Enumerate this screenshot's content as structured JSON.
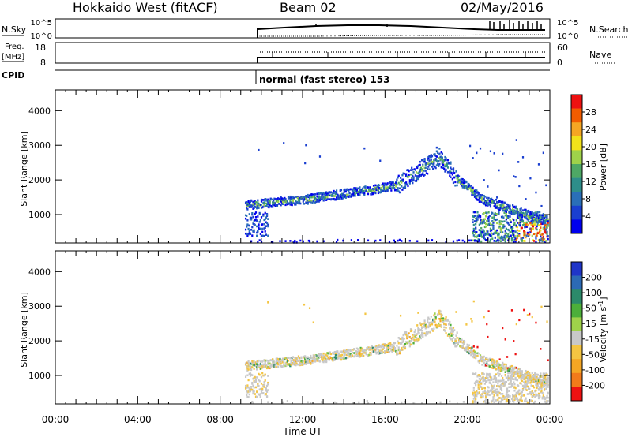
{
  "header": {
    "title": "Hokkaido West (fitACF)",
    "beam": "Beam 02",
    "date": "02/May/2016"
  },
  "nsky_panel": {
    "left_label": "N.Sky",
    "right_label": "N.Search",
    "left_ticks": [
      "10^5",
      "10^0"
    ],
    "right_ticks": [
      "10^5",
      "10^0"
    ]
  },
  "freq_panel": {
    "left_label_1": "Freq.",
    "left_label_2": "[MHz]",
    "left_ticks": [
      "18",
      "8"
    ],
    "right_label": "Nave",
    "right_ticks": [
      "60",
      "0"
    ]
  },
  "cpid_panel": {
    "label": "CPID",
    "mode_text": "normal (fast stereo) 153"
  },
  "chart_data": [
    {
      "type": "heatmap",
      "name": "power",
      "ylabel": "Slant Range [km]",
      "ylim": [
        180,
        4600
      ],
      "yticks": [
        1000,
        2000,
        3000,
        4000
      ],
      "xlim": [
        0,
        24
      ],
      "colorbar": {
        "label": "Power [dB]",
        "ticks": [
          "28",
          "24",
          "20",
          "16",
          "12",
          "8",
          "4"
        ],
        "colors": [
          "#ee1111",
          "#f25c00",
          "#f5a623",
          "#f2e21a",
          "#9fd24a",
          "#4ea865",
          "#2e8e8a",
          "#2a6fb8",
          "#1a3fd0",
          "#0000ee"
        ]
      }
    },
    {
      "type": "heatmap",
      "name": "velocity",
      "ylabel": "Slant Range [km]",
      "ylim": [
        180,
        4600
      ],
      "yticks": [
        1000,
        2000,
        3000,
        4000
      ],
      "xlim": [
        0,
        24
      ],
      "xlabel": "Time UT",
      "xticks": [
        "00:00",
        "04:00",
        "08:00",
        "12:00",
        "16:00",
        "20:00",
        "00:00"
      ],
      "colorbar": {
        "label": "Velocity [m s",
        "label_sup": "-1",
        "label_end": "]",
        "ticks": [
          "200",
          "100",
          "50",
          "15",
          "-15",
          "-50",
          "-100",
          "-200"
        ],
        "colors": [
          "#1f35c8",
          "#2c6ab5",
          "#2b8a6a",
          "#4caf3a",
          "#9fd24a",
          "#c8c8c8",
          "#f4c542",
          "#f5a623",
          "#f27a1a",
          "#ee1111"
        ]
      }
    }
  ]
}
